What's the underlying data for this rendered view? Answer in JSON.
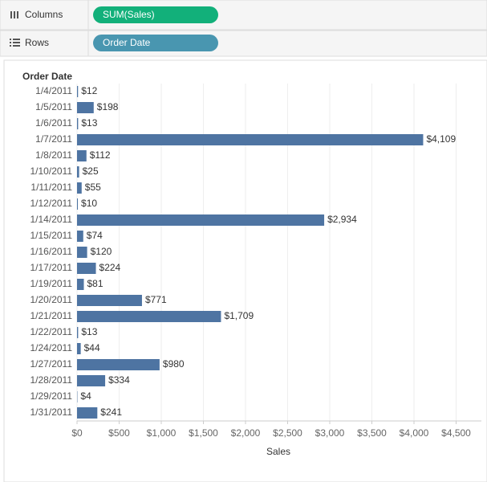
{
  "shelves": {
    "columns_label": "Columns",
    "columns_pill": "SUM(Sales)",
    "rows_label": "Rows",
    "rows_pill": "Order Date"
  },
  "chart_data": {
    "type": "hbar",
    "row_header": "Order Date",
    "x_label": "Sales",
    "color": "#4e74a2",
    "grid": true,
    "categories": [
      "1/4/2011",
      "1/5/2011",
      "1/6/2011",
      "1/7/2011",
      "1/8/2011",
      "1/10/2011",
      "1/11/2011",
      "1/12/2011",
      "1/14/2011",
      "1/15/2011",
      "1/16/2011",
      "1/17/2011",
      "1/19/2011",
      "1/20/2011",
      "1/21/2011",
      "1/22/2011",
      "1/24/2011",
      "1/27/2011",
      "1/28/2011",
      "1/29/2011",
      "1/31/2011"
    ],
    "values": [
      12,
      198,
      13,
      4109,
      112,
      25,
      55,
      10,
      2934,
      74,
      120,
      224,
      81,
      771,
      1709,
      13,
      44,
      980,
      334,
      4,
      241
    ],
    "value_labels": [
      "$12",
      "$198",
      "$13",
      "$4,109",
      "$112",
      "$25",
      "$55",
      "$10",
      "$2,934",
      "$74",
      "$120",
      "$224",
      "$81",
      "$771",
      "$1,709",
      "$13",
      "$44",
      "$980",
      "$334",
      "$4",
      "$241"
    ],
    "xlim": [
      0,
      4800
    ],
    "xticks": [
      {
        "value": 0,
        "label": "$0"
      },
      {
        "value": 500,
        "label": "$500"
      },
      {
        "value": 1000,
        "label": "$1,000"
      },
      {
        "value": 1500,
        "label": "$1,500"
      },
      {
        "value": 2000,
        "label": "$2,000"
      },
      {
        "value": 2500,
        "label": "$2,500"
      },
      {
        "value": 3000,
        "label": "$3,000"
      },
      {
        "value": 3500,
        "label": "$3,500"
      },
      {
        "value": 4000,
        "label": "$4,000"
      },
      {
        "value": 4500,
        "label": "$4,500"
      }
    ]
  }
}
